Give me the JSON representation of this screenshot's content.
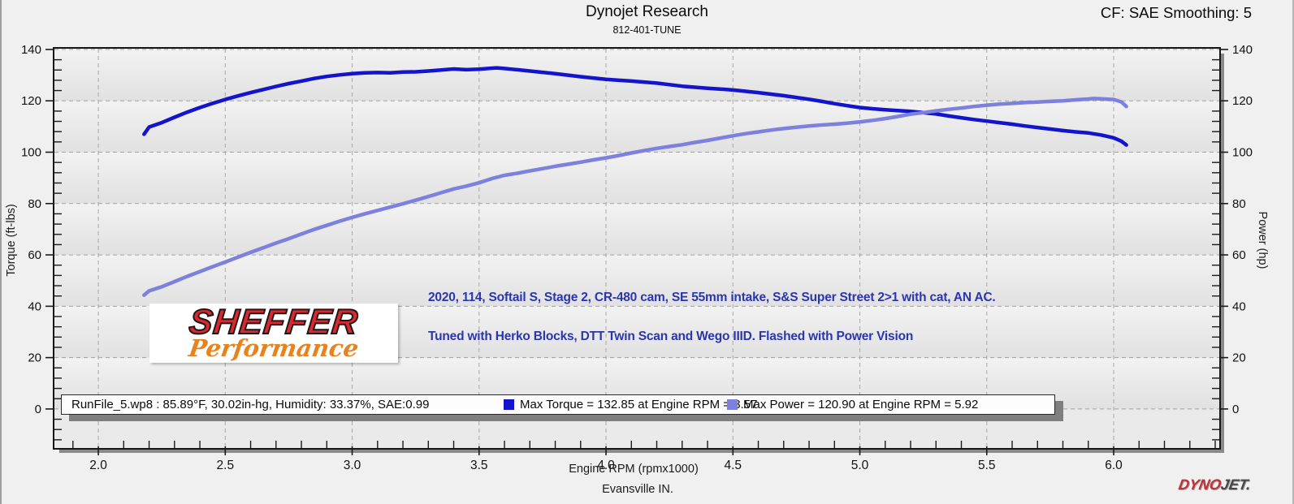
{
  "header": {
    "title": "Dynojet Research",
    "subtitle": "812-401-TUNE",
    "correction": "CF: SAE Smoothing: 5"
  },
  "footer": {
    "location": "Evansville IN."
  },
  "annotations": {
    "line1": "2020, 114, Softail S, Stage 2, CR-480 cam, SE 55mm intake, S&S Super Street 2>1 with cat, AN AC.",
    "line2": "Tuned with Herko Blocks, DTT Twin Scan and Wego IIID. Flashed with Power Vision",
    "color": "#2b35ae"
  },
  "logos": {
    "sheffer_line1": "SHEFFER",
    "sheffer_line2": "Performance",
    "dynojet_part1": "DYNO",
    "dynojet_part2": "JET."
  },
  "legend": {
    "run_info": "RunFile_5.wp8   : 85.89°F, 30.02in-hg, Humidity: 33.37%, SAE:0.99",
    "max_torque": "Max Torque = 132.85 at Engine RPM = 3.57",
    "max_power": "Max Power = 120.90 at Engine RPM = 5.92",
    "torque_swatch_color": "#1414cc",
    "power_swatch_color": "#7d80dd"
  },
  "chart_data": {
    "type": "line",
    "title": "Dynojet Research",
    "xlabel": "Engine RPM (rpmx1000)",
    "ylabel_left": "Torque (ft-lbs)",
    "ylabel_right": "Power (hp)",
    "xlim": [
      1.827,
      6.416
    ],
    "ylim": [
      -15.2,
      140.3
    ],
    "grid": "dashed",
    "legend_position": "bottom",
    "x_ticks": [
      {
        "v": 2.0,
        "label": "2.0"
      },
      {
        "v": 2.5,
        "label": "2.5"
      },
      {
        "v": 3.0,
        "label": "3.0"
      },
      {
        "v": 3.5,
        "label": "3.5"
      },
      {
        "v": 4.0,
        "label": "4.0"
      },
      {
        "v": 4.5,
        "label": "4.5"
      },
      {
        "v": 5.0,
        "label": "5.0"
      },
      {
        "v": 5.5,
        "label": "5.5"
      },
      {
        "v": 6.0,
        "label": "6.0"
      }
    ],
    "x_minor_step": 0.1,
    "y_ticks": [
      {
        "v": 0,
        "label": "0"
      },
      {
        "v": 20,
        "label": "20"
      },
      {
        "v": 40,
        "label": "40"
      },
      {
        "v": 60,
        "label": "60"
      },
      {
        "v": 80,
        "label": "80"
      },
      {
        "v": 100,
        "label": "100"
      },
      {
        "v": 120,
        "label": "120"
      },
      {
        "v": 140,
        "label": "140"
      }
    ],
    "y_minor_step": 4,
    "max_torque": {
      "value": 132.85,
      "rpm": 3.57
    },
    "max_power": {
      "value": 120.9,
      "rpm": 5.92
    },
    "series": [
      {
        "name": "Torque",
        "axis": "left",
        "color": "#1414cc",
        "points": [
          [
            2.18,
            107.0
          ],
          [
            2.2,
            109.8
          ],
          [
            2.25,
            111.5
          ],
          [
            2.3,
            113.6
          ],
          [
            2.35,
            115.6
          ],
          [
            2.4,
            117.4
          ],
          [
            2.45,
            119.0
          ],
          [
            2.5,
            120.5
          ],
          [
            2.55,
            121.9
          ],
          [
            2.6,
            123.2
          ],
          [
            2.65,
            124.4
          ],
          [
            2.7,
            125.6
          ],
          [
            2.75,
            126.7
          ],
          [
            2.8,
            127.7
          ],
          [
            2.85,
            128.7
          ],
          [
            2.9,
            129.5
          ],
          [
            2.95,
            130.1
          ],
          [
            3.0,
            130.6
          ],
          [
            3.05,
            130.9
          ],
          [
            3.1,
            131.0
          ],
          [
            3.15,
            130.9
          ],
          [
            3.2,
            131.2
          ],
          [
            3.25,
            131.3
          ],
          [
            3.3,
            131.6
          ],
          [
            3.35,
            132.0
          ],
          [
            3.4,
            132.4
          ],
          [
            3.45,
            132.1
          ],
          [
            3.5,
            132.3
          ],
          [
            3.55,
            132.7
          ],
          [
            3.57,
            132.85
          ],
          [
            3.6,
            132.6
          ],
          [
            3.65,
            132.1
          ],
          [
            3.7,
            131.6
          ],
          [
            3.75,
            131.1
          ],
          [
            3.8,
            130.6
          ],
          [
            3.85,
            130.0
          ],
          [
            3.9,
            129.4
          ],
          [
            3.95,
            128.9
          ],
          [
            4.0,
            128.4
          ],
          [
            4.05,
            128.0
          ],
          [
            4.1,
            127.7
          ],
          [
            4.15,
            127.3
          ],
          [
            4.2,
            126.9
          ],
          [
            4.25,
            126.3
          ],
          [
            4.3,
            125.7
          ],
          [
            4.35,
            125.3
          ],
          [
            4.4,
            124.9
          ],
          [
            4.45,
            124.6
          ],
          [
            4.5,
            124.2
          ],
          [
            4.55,
            123.7
          ],
          [
            4.6,
            123.2
          ],
          [
            4.65,
            122.6
          ],
          [
            4.7,
            122.0
          ],
          [
            4.75,
            121.3
          ],
          [
            4.8,
            120.6
          ],
          [
            4.85,
            119.8
          ],
          [
            4.9,
            118.9
          ],
          [
            4.95,
            118.1
          ],
          [
            5.0,
            117.4
          ],
          [
            5.05,
            116.9
          ],
          [
            5.1,
            116.5
          ],
          [
            5.15,
            116.2
          ],
          [
            5.2,
            115.9
          ],
          [
            5.25,
            115.4
          ],
          [
            5.3,
            114.9
          ],
          [
            5.35,
            114.1
          ],
          [
            5.4,
            113.4
          ],
          [
            5.45,
            112.7
          ],
          [
            5.5,
            112.1
          ],
          [
            5.55,
            111.5
          ],
          [
            5.6,
            110.9
          ],
          [
            5.65,
            110.2
          ],
          [
            5.7,
            109.6
          ],
          [
            5.75,
            109.0
          ],
          [
            5.8,
            108.4
          ],
          [
            5.85,
            107.9
          ],
          [
            5.9,
            107.5
          ],
          [
            5.95,
            106.7
          ],
          [
            6.0,
            105.6
          ],
          [
            6.03,
            104.3
          ],
          [
            6.05,
            102.8
          ]
        ]
      },
      {
        "name": "Power",
        "axis": "right",
        "color": "#7d80dd",
        "points": [
          [
            2.18,
            44.3
          ],
          [
            2.2,
            46.0
          ],
          [
            2.25,
            47.6
          ],
          [
            2.3,
            49.6
          ],
          [
            2.35,
            51.6
          ],
          [
            2.4,
            53.5
          ],
          [
            2.45,
            55.4
          ],
          [
            2.5,
            57.2
          ],
          [
            2.55,
            59.1
          ],
          [
            2.6,
            61.0
          ],
          [
            2.65,
            62.8
          ],
          [
            2.7,
            64.6
          ],
          [
            2.75,
            66.3
          ],
          [
            2.8,
            68.1
          ],
          [
            2.85,
            69.9
          ],
          [
            2.9,
            71.5
          ],
          [
            2.95,
            73.1
          ],
          [
            3.0,
            74.6
          ],
          [
            3.05,
            76.0
          ],
          [
            3.1,
            77.3
          ],
          [
            3.15,
            78.6
          ],
          [
            3.2,
            79.9
          ],
          [
            3.25,
            81.3
          ],
          [
            3.3,
            82.7
          ],
          [
            3.35,
            84.2
          ],
          [
            3.4,
            85.7
          ],
          [
            3.45,
            86.8
          ],
          [
            3.5,
            88.1
          ],
          [
            3.55,
            89.7
          ],
          [
            3.6,
            91.0
          ],
          [
            3.65,
            91.8
          ],
          [
            3.7,
            92.7
          ],
          [
            3.75,
            93.6
          ],
          [
            3.8,
            94.5
          ],
          [
            3.85,
            95.3
          ],
          [
            3.9,
            96.1
          ],
          [
            3.95,
            97.0
          ],
          [
            4.0,
            97.8
          ],
          [
            4.05,
            98.7
          ],
          [
            4.1,
            99.7
          ],
          [
            4.15,
            100.6
          ],
          [
            4.2,
            101.5
          ],
          [
            4.25,
            102.2
          ],
          [
            4.3,
            102.9
          ],
          [
            4.35,
            103.8
          ],
          [
            4.4,
            104.6
          ],
          [
            4.45,
            105.5
          ],
          [
            4.5,
            106.4
          ],
          [
            4.55,
            107.2
          ],
          [
            4.6,
            107.9
          ],
          [
            4.65,
            108.6
          ],
          [
            4.7,
            109.2
          ],
          [
            4.75,
            109.7
          ],
          [
            4.8,
            110.2
          ],
          [
            4.85,
            110.6
          ],
          [
            4.9,
            110.9
          ],
          [
            4.95,
            111.3
          ],
          [
            5.0,
            111.8
          ],
          [
            5.05,
            112.4
          ],
          [
            5.1,
            113.1
          ],
          [
            5.15,
            113.9
          ],
          [
            5.2,
            114.8
          ],
          [
            5.25,
            115.4
          ],
          [
            5.3,
            116.1
          ],
          [
            5.35,
            116.7
          ],
          [
            5.4,
            117.2
          ],
          [
            5.45,
            117.8
          ],
          [
            5.5,
            118.3
          ],
          [
            5.55,
            118.7
          ],
          [
            5.6,
            119.0
          ],
          [
            5.65,
            119.3
          ],
          [
            5.7,
            119.5
          ],
          [
            5.75,
            119.8
          ],
          [
            5.8,
            120.0
          ],
          [
            5.85,
            120.4
          ],
          [
            5.9,
            120.7
          ],
          [
            5.92,
            120.9
          ],
          [
            5.95,
            120.8
          ],
          [
            6.0,
            120.5
          ],
          [
            6.03,
            119.6
          ],
          [
            6.05,
            117.8
          ]
        ]
      }
    ]
  }
}
